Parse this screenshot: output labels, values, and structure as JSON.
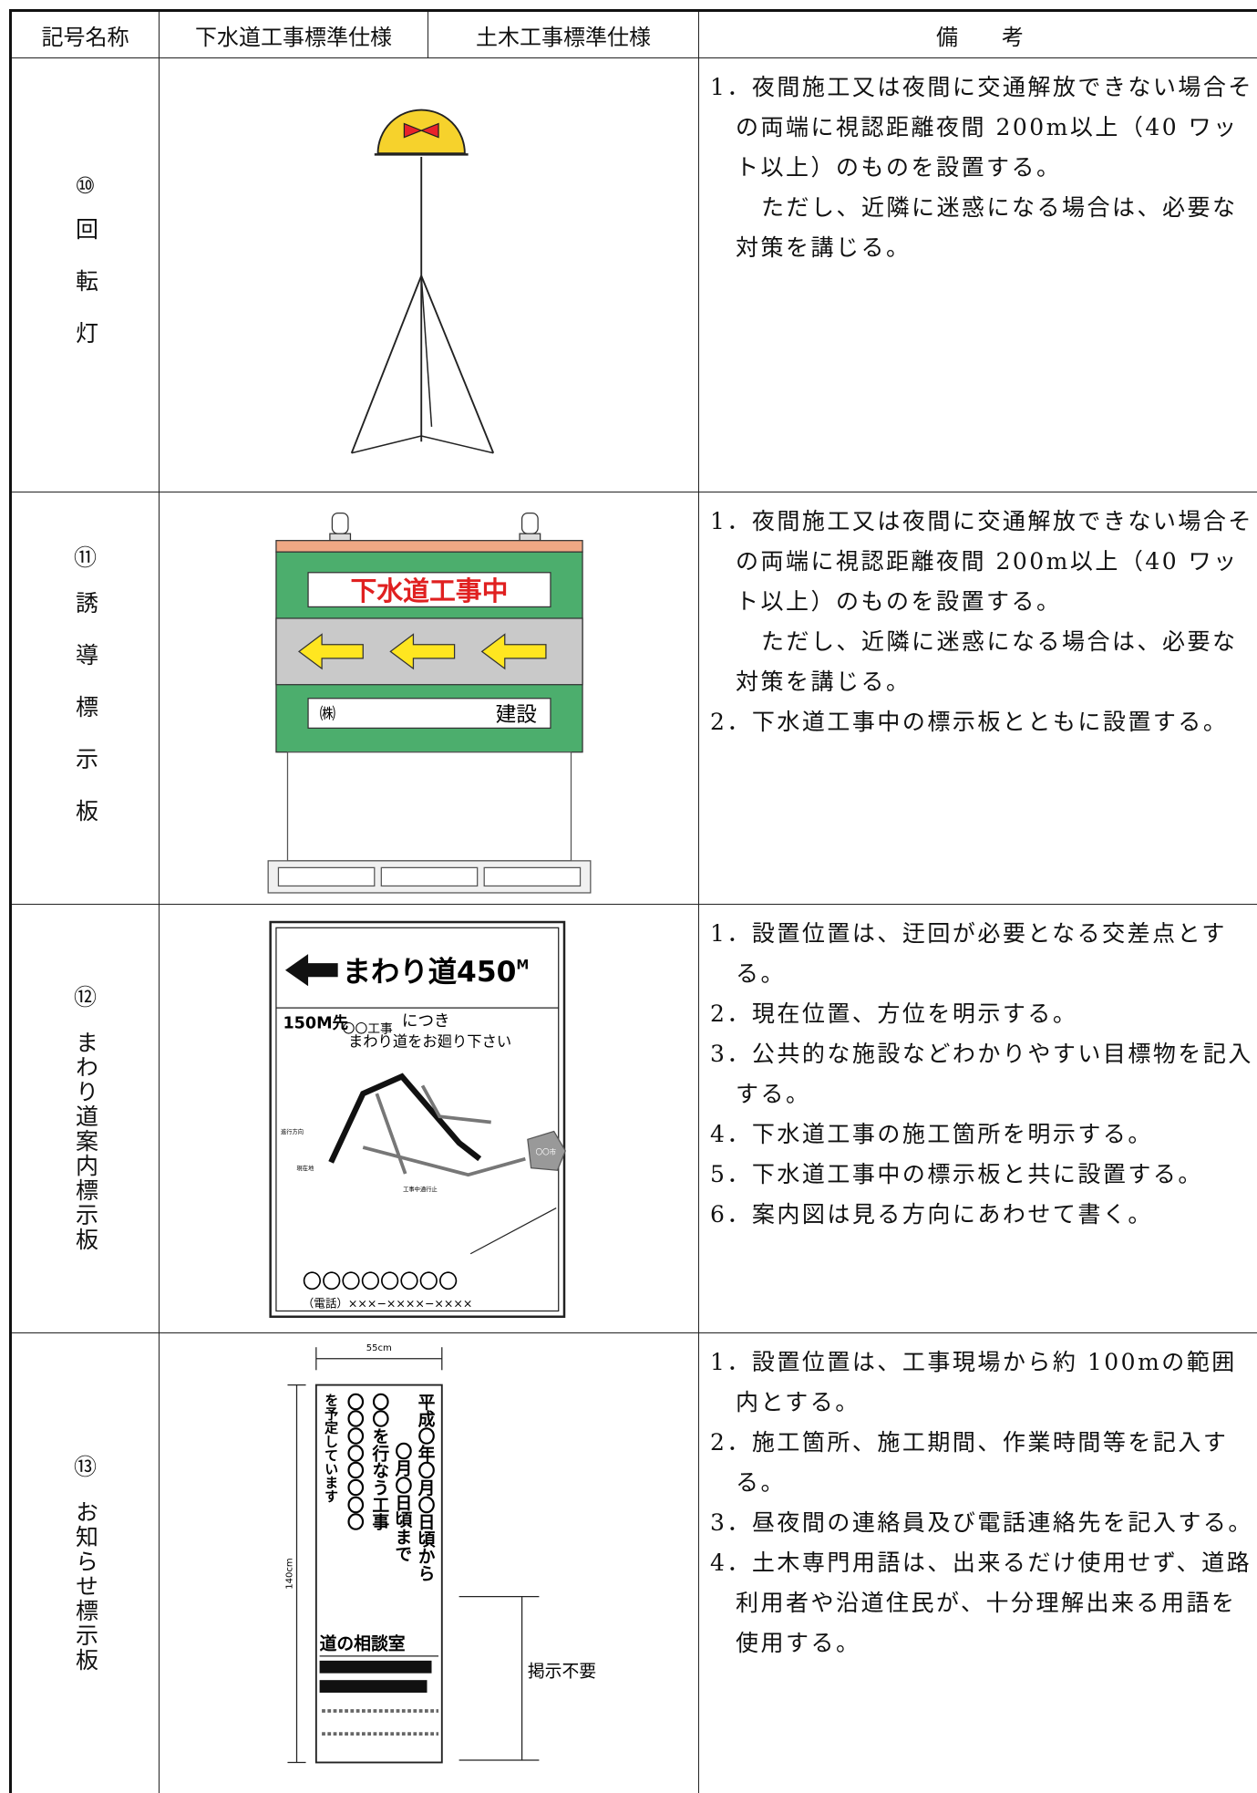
{
  "table": {
    "header": [
      "記号名称",
      "下水道工事標準仕様",
      "土木工事標準仕様",
      "備　　考"
    ],
    "rows": [
      {
        "number": "⑩",
        "name": "回転灯",
        "notes": [
          "1．夜間施工又は夜間に交通解放できない場合その両端に視認距離夜間 200m以上（40 ワット以上）のものを設置する。",
          "ただし、近隣に迷惑になる場合は、必要な対策を講じる。"
        ]
      },
      {
        "number": "⑪",
        "name": "誘導標示板",
        "figure": {
          "heading": "下水道工事中",
          "company": "㈱",
          "suffix": "建設"
        },
        "notes": [
          "1．夜間施工又は夜間に交通解放できない場合その両端に視認距離夜間 200m以上（40 ワット以上）のものを設置する。",
          "ただし、近隣に迷惑になる場合は、必要な対策を講じる。",
          "2．下水道工事中の標示板とともに設置する。"
        ]
      },
      {
        "number": "⑫",
        "name": "まわり道案内標示板",
        "figure": {
          "heading": "まわり道450",
          "unit": "M",
          "distance": "150M先",
          "work": "〇〇工事",
          "reason": "につき",
          "request": "まわり道をお廻り下さい",
          "direction": "進行方向",
          "here": "現在地",
          "closed": "工事中通行止",
          "city": "〇〇市",
          "owner": "〇〇〇〇〇〇〇〇",
          "phone": "（電話）×××−××××−××××"
        },
        "notes": [
          "1．設置位置は、迂回が必要となる交差点とする。",
          "2．現在位置、方位を明示する。",
          "3．公共的な施設などわかりやすい目標物を記入する。",
          "4．下水道工事の施工箇所を明示する。",
          "5．下水道工事中の標示板と共に設置する。",
          "6．案内図は見る方向にあわせて書く。"
        ]
      },
      {
        "number": "⑬",
        "name": "お知らせ標示板",
        "figure": {
          "width": "55cm",
          "height": "140cm",
          "line1": "平成〇年〇月〇日頃から",
          "line2": "〇月〇日頃まで",
          "line3": "〇〇を行なう工事",
          "line4": "〇〇〇〇〇〇〇〇",
          "line5": "を予定しています",
          "office": "道の相談室",
          "not_required": "掲示不要"
        },
        "notes": [
          "1．設置位置は、工事現場から約 100mの範囲内とする。",
          "2．施工箇所、施工期間、作業時間等を記入する。",
          "3．昼夜間の連絡員及び電話連絡先を記入する。",
          "4．土木専門用語は、出来るだけ使用せず、道路利用者や沿道住民が、十分理解出来る用語を使用する。"
        ]
      }
    ]
  }
}
